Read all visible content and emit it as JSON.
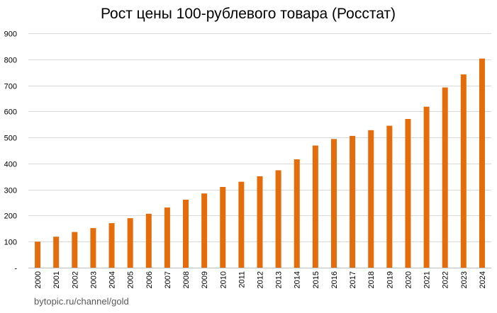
{
  "chart_data": {
    "type": "bar",
    "title": "Рост цены 100-рублевого товара (Росстат)",
    "xlabel": "",
    "ylabel": "",
    "categories": [
      "2000",
      "2001",
      "2002",
      "2003",
      "2004",
      "2005",
      "2006",
      "2007",
      "2008",
      "2009",
      "2010",
      "2011",
      "2012",
      "2013",
      "2014",
      "2015",
      "2016",
      "2017",
      "2018",
      "2019",
      "2020",
      "2021",
      "2022",
      "2023",
      "2024"
    ],
    "values": [
      100,
      119,
      137,
      152,
      171,
      190,
      207,
      231,
      261,
      285,
      310,
      330,
      351,
      374,
      416,
      469,
      494,
      506,
      528,
      545,
      571,
      618,
      692,
      742,
      803
    ],
    "ylim": [
      0,
      900
    ],
    "yticks": [
      "-",
      "100",
      "200",
      "300",
      "400",
      "500",
      "600",
      "700",
      "800",
      "900"
    ],
    "ytick_values": [
      0,
      100,
      200,
      300,
      400,
      500,
      600,
      700,
      800,
      900
    ],
    "grid": true,
    "legend": "none",
    "bar_color": "#E46C0A"
  },
  "watermark": "bytopic.ru/channel/gold"
}
